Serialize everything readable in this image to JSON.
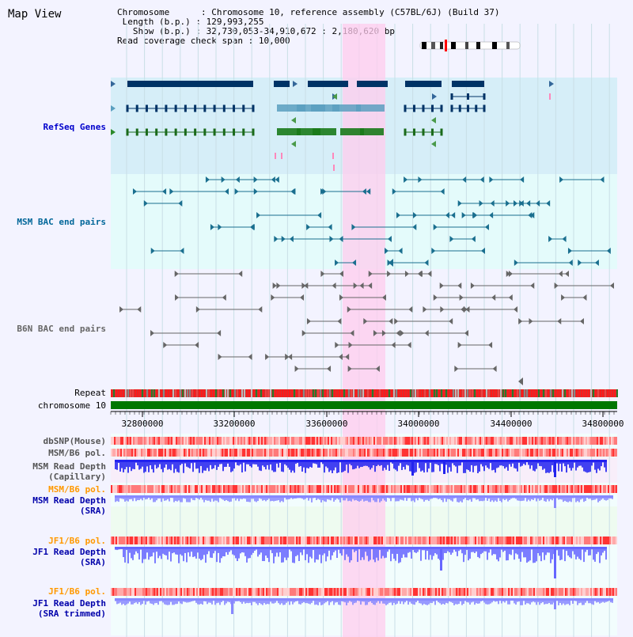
{
  "app": {
    "title": "Map View"
  },
  "info": {
    "chromosome_key": "Chromosome",
    "chromosome_value": "Chromosome 10, reference assembly (C57BL/6J) (Build 37)",
    "length_key": "Length (b.p.)",
    "length_value": "129,993,255",
    "show_key": "Show (b.p.)",
    "show_value": "32,730,053-34,910,672 : 2,180,620 bp",
    "coverage_key": "Read coverage check span",
    "coverage_value": "10,000"
  },
  "tracks": {
    "refseq": "RefSeq Genes",
    "msm_bac": "MSM BAC end pairs",
    "b6n_bac": "B6N BAC end pairs",
    "repeat": "Repeat",
    "chromosome": "chromosome 10",
    "dbsnp": "dbSNP(Mouse)",
    "msm_b6_pol_1": "MSM/B6 pol.",
    "msm_depth_cap_1": "MSM Read Depth",
    "msm_depth_cap_2": "(Capillary)",
    "msm_b6_pol_2": "MSM/B6 pol.",
    "msm_depth_sra_1": "MSM Read Depth",
    "msm_depth_sra_2": "(SRA)",
    "jf1_b6_pol_1": "JF1/B6 pol.",
    "jf1_depth_sra_1": "JF1 Read Depth",
    "jf1_depth_sra_2": "(SRA)",
    "jf1_b6_pol_2": "JF1/B6 pol.",
    "jf1_depth_trim_1": "JF1 Read Depth",
    "jf1_depth_trim_2": "(SRA trimmed)"
  },
  "axis": {
    "ticks": [
      "32800000",
      "33200000",
      "33600000",
      "34000000",
      "34400000",
      "34800000"
    ]
  },
  "colors": {
    "refseq_bg": "#d6eef8",
    "bac_bg": "#e4fbfb",
    "b6n_bg": "#f3f3ff",
    "highlight": "#ffccee",
    "refseq_label": "#0000cc",
    "msm_label": "#006699",
    "b6n_label": "#666666",
    "msm_pol_label": "#ff9900",
    "jf1_pol_label": "#ff9900",
    "depth_label": "#0000aa"
  }
}
